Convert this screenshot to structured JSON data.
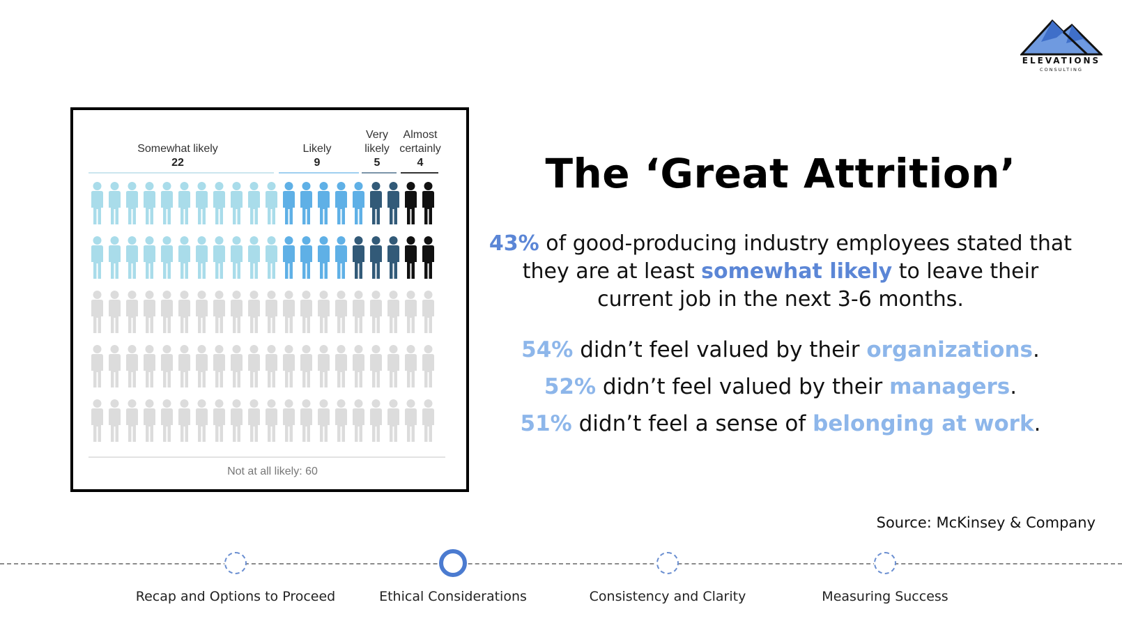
{
  "logo": {
    "word": "ELEVATIONS",
    "sub": "CONSULTING",
    "colors": {
      "outline": "#111111",
      "fill_dark": "#3f6fc9",
      "fill_light": "#6f9ae0"
    }
  },
  "figure": {
    "categories": [
      {
        "label": "Somewhat likely",
        "count": "22",
        "color": "#a9dcea"
      },
      {
        "label": "Likely",
        "count": "9",
        "color": "#5fb0e6"
      },
      {
        "label": "Very likely",
        "count": "5",
        "color": "#325a78"
      },
      {
        "label": "Almost certainly",
        "count": "4",
        "color": "#111111"
      }
    ],
    "not_likely": {
      "label": "Not at all likely: 60",
      "color": "#dcdcdc"
    }
  },
  "title": "The ‘Great Attrition’",
  "paragraph": {
    "pct": "43%",
    "text1": " of good-producing industry employees stated that they are at least ",
    "highlight": "somewhat likely",
    "text2": " to leave their current job in the next 3-6 months."
  },
  "stats": [
    {
      "pct": "54%",
      "text": " didn’t feel valued by their ",
      "highlight": "organizations",
      "end": "."
    },
    {
      "pct": "52%",
      "text": " didn’t feel valued by their ",
      "highlight": "managers",
      "end": "."
    },
    {
      "pct": "51%",
      "text": " didn’t feel a sense of ",
      "highlight": "belonging at work",
      "end": "."
    }
  ],
  "source": "Source: McKinsey & Company",
  "timeline": {
    "steps": [
      {
        "label": "Recap and Options to Proceed",
        "active": false
      },
      {
        "label": "Ethical Considerations",
        "active": true
      },
      {
        "label": "Consistency and Clarity",
        "active": false
      },
      {
        "label": "Measuring Success",
        "active": false
      }
    ]
  },
  "colors": {
    "highlight_dark": "#5b86d6",
    "highlight_light": "#8db6ea",
    "timeline_active": "#4b7bd0"
  }
}
